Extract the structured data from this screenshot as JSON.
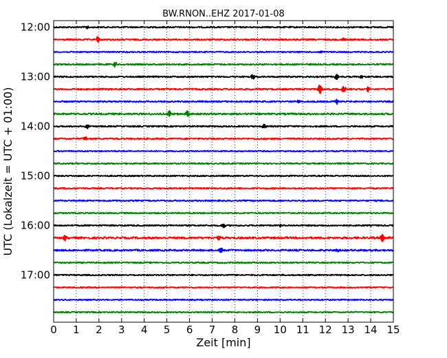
{
  "chart_data": {
    "type": "line",
    "title": "BW.RNON..EHZ 2017-01-08",
    "xlabel": "Zeit  [min]",
    "ylabel": "UTC (Lokalzeit = UTC + 01:00)",
    "xlim": [
      0,
      15
    ],
    "x_ticks": [
      0,
      1,
      2,
      3,
      4,
      5,
      6,
      7,
      8,
      9,
      10,
      11,
      12,
      13,
      14,
      15
    ],
    "x_tick_labels": [
      "0",
      "1",
      "2",
      "3",
      "4",
      "5",
      "6",
      "7",
      "8",
      "9",
      "10",
      "11",
      "12",
      "13",
      "14",
      "15"
    ],
    "y_tick_labels": [
      "12:00",
      "13:00",
      "14:00",
      "15:00",
      "16:00",
      "17:00"
    ],
    "trace_interval_min": 15,
    "color_cycle": [
      "#000000",
      "#ff0000",
      "#0000ff",
      "#008000"
    ],
    "grid": "vertical dotted",
    "traces": [
      {
        "start": "12:00",
        "color": "#000000",
        "noise": 1.0,
        "events": [
          {
            "t": 1.5,
            "amp": 2.5
          }
        ]
      },
      {
        "start": "12:15",
        "color": "#ff0000",
        "noise": 1.0,
        "events": [
          {
            "t": 1.95,
            "amp": 5
          },
          {
            "t": 12.8,
            "amp": 2.5
          }
        ]
      },
      {
        "start": "12:30",
        "color": "#0000ff",
        "noise": 0.8,
        "events": [
          {
            "t": 11.8,
            "amp": 2
          }
        ]
      },
      {
        "start": "12:45",
        "color": "#008000",
        "noise": 1.0,
        "events": [
          {
            "t": 2.7,
            "amp": 4
          }
        ]
      },
      {
        "start": "13:00",
        "color": "#000000",
        "noise": 1.0,
        "events": [
          {
            "t": 8.8,
            "amp": 4
          },
          {
            "t": 12.5,
            "amp": 4
          },
          {
            "t": 13.6,
            "amp": 2
          }
        ]
      },
      {
        "start": "13:15",
        "color": "#ff0000",
        "noise": 1.0,
        "events": [
          {
            "t": 11.75,
            "amp": 9
          },
          {
            "t": 12.8,
            "amp": 5
          },
          {
            "t": 13.9,
            "amp": 4
          }
        ]
      },
      {
        "start": "13:30",
        "color": "#0000ff",
        "noise": 1.0,
        "events": [
          {
            "t": 12.5,
            "amp": 4
          },
          {
            "t": 10.8,
            "amp": 2
          }
        ]
      },
      {
        "start": "13:45",
        "color": "#008000",
        "noise": 1.2,
        "events": [
          {
            "t": 5.1,
            "amp": 6
          },
          {
            "t": 5.9,
            "amp": 5
          }
        ]
      },
      {
        "start": "14:00",
        "color": "#000000",
        "noise": 1.0,
        "events": [
          {
            "t": 1.5,
            "amp": 3
          },
          {
            "t": 9.3,
            "amp": 4
          }
        ]
      },
      {
        "start": "14:15",
        "color": "#ff0000",
        "noise": 1.0,
        "events": [
          {
            "t": 1.4,
            "amp": 4
          }
        ]
      },
      {
        "start": "14:30",
        "color": "#0000ff",
        "noise": 0.8,
        "events": []
      },
      {
        "start": "14:45",
        "color": "#008000",
        "noise": 0.9,
        "events": []
      },
      {
        "start": "15:00",
        "color": "#000000",
        "noise": 0.9,
        "events": []
      },
      {
        "start": "15:15",
        "color": "#ff0000",
        "noise": 0.9,
        "events": []
      },
      {
        "start": "15:30",
        "color": "#0000ff",
        "noise": 0.9,
        "events": []
      },
      {
        "start": "15:45",
        "color": "#008000",
        "noise": 0.9,
        "events": []
      },
      {
        "start": "16:00",
        "color": "#000000",
        "noise": 1.0,
        "events": [
          {
            "t": 7.5,
            "amp": 4
          },
          {
            "t": 10.0,
            "amp": 2
          }
        ]
      },
      {
        "start": "16:15",
        "color": "#ff0000",
        "noise": 1.4,
        "events": [
          {
            "t": 0.5,
            "amp": 4
          },
          {
            "t": 7.3,
            "amp": 3
          },
          {
            "t": 14.5,
            "amp": 7
          }
        ]
      },
      {
        "start": "16:30",
        "color": "#0000ff",
        "noise": 1.2,
        "events": [
          {
            "t": 7.4,
            "amp": 5
          },
          {
            "t": 12.5,
            "amp": 3
          }
        ]
      },
      {
        "start": "16:45",
        "color": "#008000",
        "noise": 0.9,
        "events": []
      },
      {
        "start": "17:00",
        "color": "#000000",
        "noise": 0.9,
        "events": []
      },
      {
        "start": "17:15",
        "color": "#ff0000",
        "noise": 0.8,
        "events": []
      },
      {
        "start": "17:30",
        "color": "#0000ff",
        "noise": 0.8,
        "events": []
      },
      {
        "start": "17:45",
        "color": "#008000",
        "noise": 0.8,
        "events": []
      }
    ]
  }
}
